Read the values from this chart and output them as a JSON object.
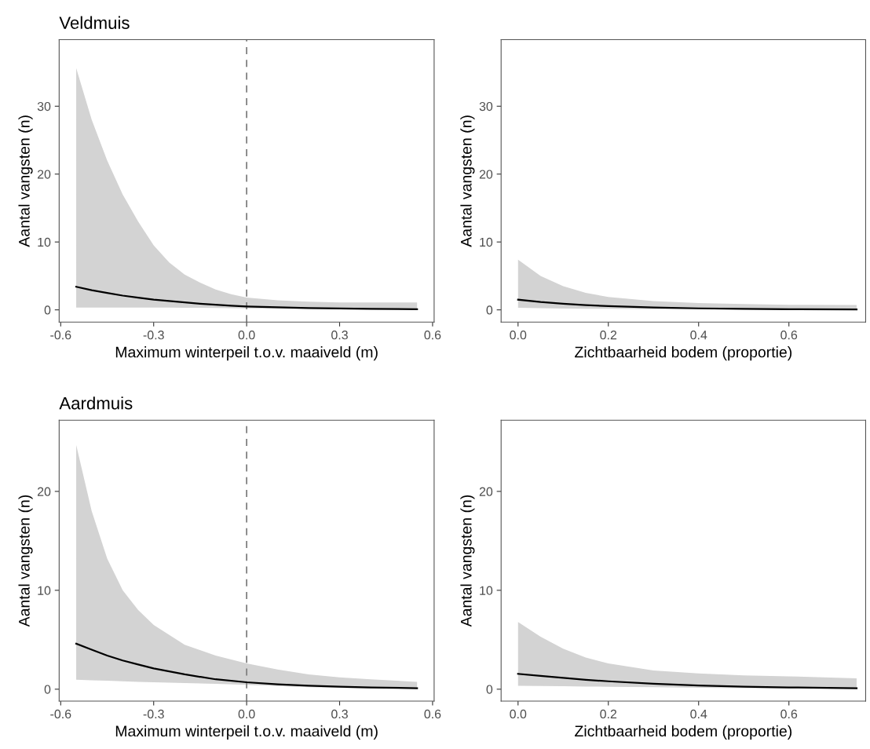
{
  "chart_data": [
    {
      "type": "line",
      "title": "Veldmuis",
      "xlabel": "Maximum winterpeil t.o.v. maaiveld (m)",
      "ylabel": "Aantal vangsten (n)",
      "xlim": [
        -0.605,
        0.605
      ],
      "xticks": [
        {
          "value": -0.6,
          "label": "-0.6"
        },
        {
          "value": -0.3,
          "label": "-0.3"
        },
        {
          "value": 0,
          "label": "0.0"
        },
        0.3,
        0.6
      ],
      "ylim": [
        -1.8,
        39.8
      ],
      "yticks": [
        0,
        10,
        20,
        30
      ],
      "grid": false,
      "legend": false,
      "line_style": "solid",
      "marker": "none",
      "ref_lines": [
        {
          "axis": "x",
          "value": 0,
          "color": "#808080",
          "line_style": "dashed"
        }
      ],
      "series": [
        {
          "color": "#000000",
          "x": [
            -0.55,
            -0.5,
            -0.45,
            -0.4,
            -0.35,
            -0.3,
            -0.25,
            -0.2,
            -0.15,
            -0.1,
            -0.05,
            0,
            0.1,
            0.2,
            0.3,
            0.4,
            0.55
          ],
          "values": [
            3.4,
            2.9,
            2.5,
            2.1,
            1.8,
            1.5,
            1.3,
            1.1,
            0.9,
            0.75,
            0.6,
            0.5,
            0.37,
            0.27,
            0.2,
            0.14,
            0.1
          ],
          "upper": [
            35.6,
            28,
            22,
            17,
            13,
            9.5,
            7,
            5.2,
            4,
            3,
            2.3,
            1.8,
            1.4,
            1.2,
            1.1,
            1.1,
            1.1
          ],
          "lower": [
            0.35,
            0.35,
            0.35,
            0.35,
            0.35,
            0.35,
            0.33,
            0.32,
            0.3,
            0.28,
            0.25,
            0.22,
            0.17,
            0.12,
            0.08,
            0.05,
            0.02
          ]
        }
      ]
    },
    {
      "type": "line",
      "xlabel": "Zichtbaarheid bodem (proportie)",
      "ylabel": "Aantal vangsten (n)",
      "xlim": [
        -0.0375,
        0.77
      ],
      "xticks": [
        {
          "value": 0,
          "label": "0.0"
        },
        0.2,
        0.4,
        0.6
      ],
      "ylim": [
        -1.8,
        39.8
      ],
      "yticks": [
        0,
        10,
        20,
        30
      ],
      "grid": false,
      "legend": false,
      "line_style": "solid",
      "marker": "none",
      "series": [
        {
          "color": "#000000",
          "x": [
            0,
            0.05,
            0.1,
            0.15,
            0.2,
            0.3,
            0.4,
            0.5,
            0.6,
            0.75
          ],
          "values": [
            1.5,
            1.15,
            0.9,
            0.7,
            0.55,
            0.35,
            0.22,
            0.14,
            0.09,
            0.05
          ],
          "upper": [
            7.4,
            5.0,
            3.5,
            2.5,
            1.9,
            1.3,
            1.0,
            0.85,
            0.75,
            0.7
          ],
          "lower": [
            0.3,
            0.25,
            0.2,
            0.17,
            0.15,
            0.1,
            0.07,
            0.05,
            0.03,
            0.02
          ]
        }
      ]
    },
    {
      "type": "line",
      "title": "Aardmuis",
      "xlabel": "Maximum winterpeil t.o.v. maaiveld (m)",
      "ylabel": "Aantal vangsten (n)",
      "xlim": [
        -0.605,
        0.605
      ],
      "xticks": [
        {
          "value": -0.6,
          "label": "-0.6"
        },
        {
          "value": -0.3,
          "label": "-0.3"
        },
        {
          "value": 0,
          "label": "0.0"
        },
        0.3,
        0.6
      ],
      "ylim": [
        -1.2,
        27.2
      ],
      "yticks": [
        0,
        10,
        20
      ],
      "grid": false,
      "legend": false,
      "line_style": "solid",
      "marker": "none",
      "ref_lines": [
        {
          "axis": "x",
          "value": 0,
          "color": "#808080",
          "line_style": "dashed"
        }
      ],
      "series": [
        {
          "color": "#000000",
          "x": [
            -0.55,
            -0.5,
            -0.45,
            -0.4,
            -0.35,
            -0.3,
            -0.2,
            -0.1,
            0,
            0.1,
            0.2,
            0.3,
            0.4,
            0.55
          ],
          "values": [
            4.6,
            4.0,
            3.4,
            2.9,
            2.5,
            2.1,
            1.5,
            1.0,
            0.7,
            0.5,
            0.35,
            0.25,
            0.18,
            0.1
          ],
          "upper": [
            24.7,
            18,
            13.2,
            10,
            8,
            6.5,
            4.5,
            3.4,
            2.6,
            2,
            1.5,
            1.2,
            1.0,
            0.75
          ],
          "lower": [
            0.95,
            0.9,
            0.85,
            0.8,
            0.75,
            0.7,
            0.62,
            0.55,
            0.45,
            0.32,
            0.2,
            0.12,
            0.07,
            0.02
          ]
        }
      ]
    },
    {
      "type": "line",
      "xlabel": "Zichtbaarheid bodem (proportie)",
      "ylabel": "Aantal vangsten (n)",
      "xlim": [
        -0.0375,
        0.77
      ],
      "xticks": [
        {
          "value": 0,
          "label": "0.0"
        },
        0.2,
        0.4,
        0.6
      ],
      "ylim": [
        -1.2,
        27.2
      ],
      "yticks": [
        0,
        10,
        20
      ],
      "grid": false,
      "legend": false,
      "line_style": "solid",
      "marker": "none",
      "series": [
        {
          "color": "#000000",
          "x": [
            0,
            0.05,
            0.1,
            0.15,
            0.2,
            0.3,
            0.4,
            0.5,
            0.6,
            0.75
          ],
          "values": [
            1.55,
            1.35,
            1.15,
            0.95,
            0.8,
            0.55,
            0.38,
            0.26,
            0.18,
            0.1
          ],
          "upper": [
            6.8,
            5.3,
            4.1,
            3.2,
            2.6,
            1.9,
            1.6,
            1.4,
            1.3,
            1.1
          ],
          "lower": [
            0.35,
            0.32,
            0.3,
            0.27,
            0.25,
            0.2,
            0.15,
            0.1,
            0.07,
            0.03
          ]
        }
      ]
    }
  ]
}
